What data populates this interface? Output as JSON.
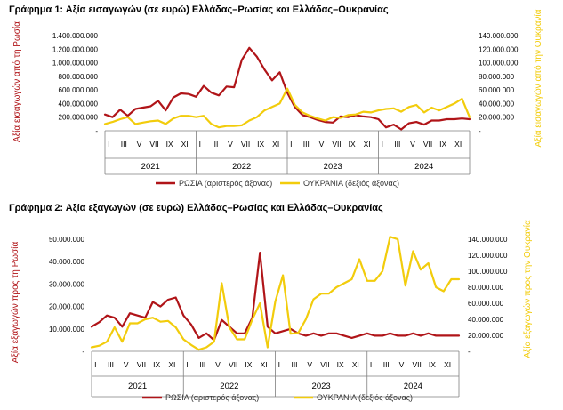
{
  "colors": {
    "russia": "#b01418",
    "ukraine": "#f2cc0c",
    "axis": "#7f7f7f",
    "text": "#000000"
  },
  "chart_data": [
    {
      "type": "line",
      "title": "Γράφημα 1: Αξία εισαγωγών (σε ευρώ) Ελλάδας–Ρωσίας και Ελλάδας–Ουκρανίας",
      "ylabel_left": "Αξία εισαγωγών από τη Ρωσία",
      "ylabel_right": "Αξία εισαγωγών από την Ουκρανία",
      "left_ticks": [
        "1.400.000.000",
        "1.200.000.000",
        "1.000.000.000",
        "800.000.000",
        "600.000.000",
        "400.000.000",
        "200.000.000",
        "-"
      ],
      "right_ticks": [
        "140.000.000",
        "120.000.000",
        "100.000.000",
        "80.000.000",
        "60.000.000",
        "40.000.000",
        "20.000.000",
        "-"
      ],
      "ylim_left": [
        0,
        1400000000
      ],
      "ylim_right": [
        0,
        140000000
      ],
      "month_labels": [
        "I",
        "III",
        "V",
        "VII",
        "IX",
        "XI",
        "I",
        "III",
        "V",
        "VII",
        "IX",
        "XI",
        "I",
        "III",
        "V",
        "VII",
        "IX",
        "XI",
        "I",
        "III",
        "V",
        "VII",
        "IX",
        "XI"
      ],
      "years": [
        "2021",
        "2022",
        "2023",
        "2024"
      ],
      "legend_placement": "bottom",
      "series": [
        {
          "name": "ΡΩΣΙΑ (αριστερός άξονας)",
          "axis": "left",
          "color": "#b01418",
          "values": [
            240000000,
            200000000,
            310000000,
            220000000,
            320000000,
            340000000,
            360000000,
            440000000,
            300000000,
            490000000,
            550000000,
            540000000,
            500000000,
            660000000,
            560000000,
            520000000,
            650000000,
            640000000,
            1040000000,
            1220000000,
            1090000000,
            900000000,
            740000000,
            860000000,
            560000000,
            350000000,
            230000000,
            200000000,
            160000000,
            130000000,
            120000000,
            210000000,
            200000000,
            230000000,
            210000000,
            200000000,
            170000000,
            50000000,
            90000000,
            20000000,
            110000000,
            130000000,
            90000000,
            150000000,
            150000000,
            170000000,
            170000000,
            180000000,
            170000000
          ]
        },
        {
          "name": "ΟΥΚΡΑΝΙΑ (δεξιός άξονας)",
          "axis": "right",
          "color": "#f2cc0c",
          "values": [
            10000000,
            13000000,
            17000000,
            20000000,
            10000000,
            12000000,
            14000000,
            15000000,
            10000000,
            18000000,
            22000000,
            22000000,
            20000000,
            22000000,
            10000000,
            5000000,
            7000000,
            7000000,
            8000000,
            15000000,
            20000000,
            30000000,
            35000000,
            40000000,
            62000000,
            38000000,
            27000000,
            22000000,
            18000000,
            15000000,
            20000000,
            19000000,
            23000000,
            24000000,
            28000000,
            27000000,
            30000000,
            32000000,
            33000000,
            28000000,
            35000000,
            38000000,
            27000000,
            34000000,
            30000000,
            35000000,
            40000000,
            47000000,
            20000000
          ]
        }
      ]
    },
    {
      "type": "line",
      "title": "Γράφημα 2: Αξία εξαγωγών (σε ευρώ) Ελλάδας–Ρωσίας και Ελλάδας–Ουκρανίας",
      "ylabel_left": "Αξία εξαγωγών προς τη Ρωσία",
      "ylabel_right": "Αξία εξαγωγών προς την Ουκρανία",
      "left_ticks": [
        "50.000.000",
        "40.000.000",
        "30.000.000",
        "20.000.000",
        "10.000.000",
        "-"
      ],
      "right_ticks": [
        "140.000.000",
        "120.000.000",
        "100.000.000",
        "80.000.000",
        "60.000.000",
        "40.000.000",
        "20.000.000",
        "-"
      ],
      "ylim_left": [
        0,
        50000000
      ],
      "ylim_right": [
        0,
        140000000
      ],
      "month_labels": [
        "I",
        "III",
        "V",
        "VII",
        "IX",
        "XI",
        "I",
        "III",
        "V",
        "VII",
        "IX",
        "XI",
        "I",
        "III",
        "V",
        "VII",
        "IX",
        "XI",
        "I",
        "III",
        "V",
        "VII",
        "IX",
        "XI"
      ],
      "years": [
        "2021",
        "2022",
        "2023",
        "2024"
      ],
      "legend_placement": "bottom",
      "series": [
        {
          "name": "ΡΩΣΙΑ (αριστερός άξονας)",
          "axis": "left",
          "color": "#b01418",
          "values": [
            11000000,
            13000000,
            16000000,
            15000000,
            11000000,
            17000000,
            16000000,
            15000000,
            22000000,
            20000000,
            23000000,
            24000000,
            16000000,
            12000000,
            6000000,
            8000000,
            5000000,
            14000000,
            11000000,
            8000000,
            8000000,
            15000000,
            44000000,
            11000000,
            8000000,
            9000000,
            10000000,
            8000000,
            7000000,
            8000000,
            7000000,
            8000000,
            8000000,
            7000000,
            6000000,
            7000000,
            8000000,
            7000000,
            7000000,
            8000000,
            7000000,
            7000000,
            8000000,
            7000000,
            8000000,
            7000000,
            7000000,
            7000000,
            7000000
          ]
        },
        {
          "name": "ΟΥΚΡΑΝΙΑ (δεξιός άξονας)",
          "axis": "right",
          "color": "#f2cc0c",
          "values": [
            5000000,
            7000000,
            12000000,
            30000000,
            12000000,
            35000000,
            35000000,
            40000000,
            42000000,
            37000000,
            38000000,
            30000000,
            15000000,
            8000000,
            2000000,
            5000000,
            12000000,
            85000000,
            30000000,
            15000000,
            15000000,
            40000000,
            60000000,
            5000000,
            62000000,
            95000000,
            22000000,
            23000000,
            40000000,
            65000000,
            72000000,
            72000000,
            80000000,
            85000000,
            90000000,
            115000000,
            88000000,
            88000000,
            100000000,
            143000000,
            140000000,
            82000000,
            125000000,
            102000000,
            110000000,
            80000000,
            75000000,
            90000000,
            90000000
          ]
        }
      ]
    }
  ]
}
